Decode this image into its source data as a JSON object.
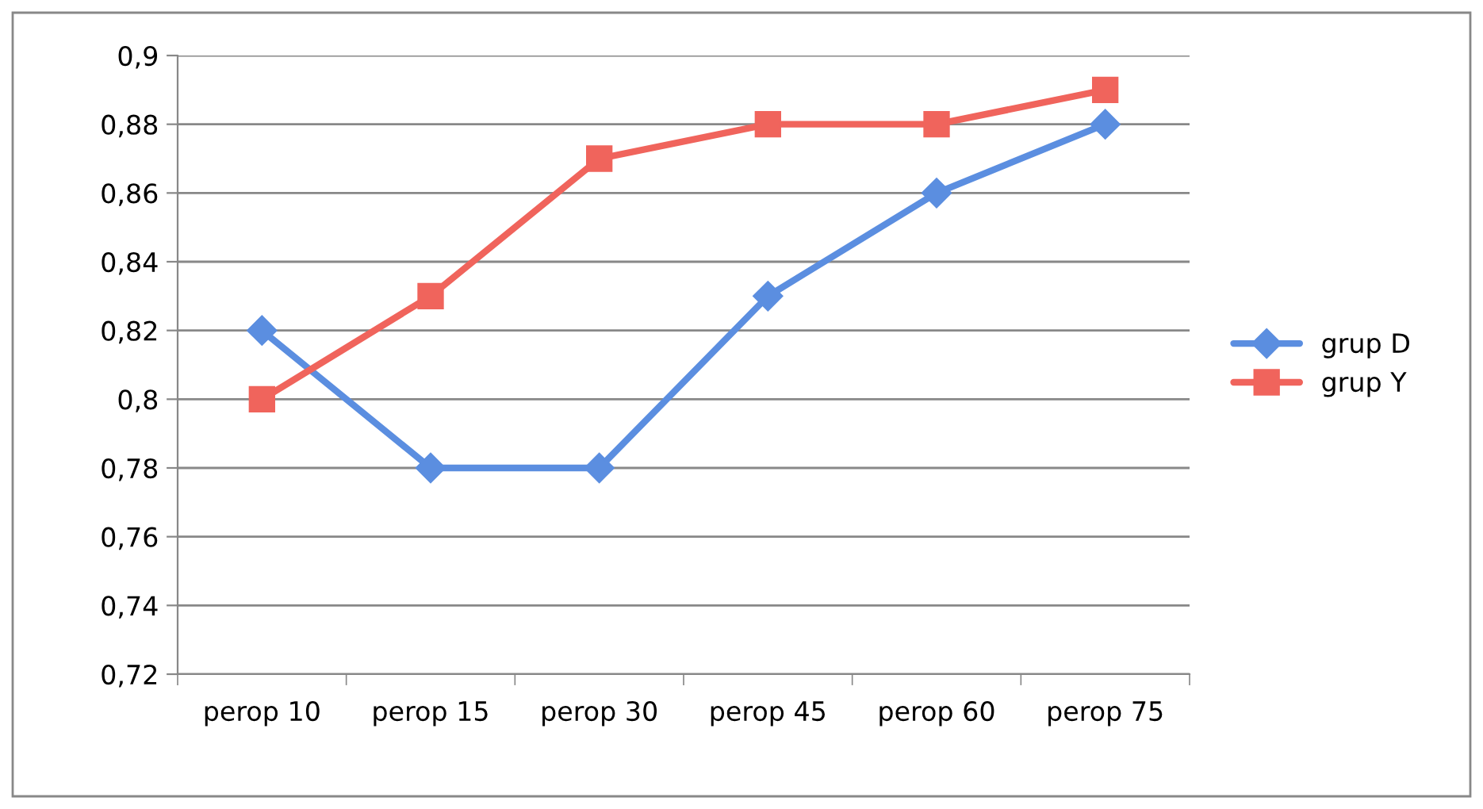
{
  "chart_data": {
    "type": "line",
    "categories": [
      "perop 10",
      "perop 15",
      "perop 30",
      "perop 45",
      "perop 60",
      "perop 75"
    ],
    "series": [
      {
        "name": "grup D",
        "color": "#5b8ee0",
        "marker": "diamond",
        "values": [
          0.82,
          0.78,
          0.78,
          0.83,
          0.86,
          0.88
        ]
      },
      {
        "name": "grup Y",
        "color": "#f0645c",
        "marker": "square",
        "values": [
          0.8,
          0.83,
          0.87,
          0.88,
          0.88,
          0.89
        ]
      }
    ],
    "ylim": [
      0.72,
      0.9
    ],
    "yticks": [
      {
        "value": 0.72,
        "label": "0,72"
      },
      {
        "value": 0.74,
        "label": "0,74"
      },
      {
        "value": 0.76,
        "label": "0,76"
      },
      {
        "value": 0.78,
        "label": "0,78"
      },
      {
        "value": 0.8,
        "label": "0,8"
      },
      {
        "value": 0.82,
        "label": "0,82"
      },
      {
        "value": 0.84,
        "label": "0,84"
      },
      {
        "value": 0.86,
        "label": "0,86"
      },
      {
        "value": 0.88,
        "label": "0,88"
      },
      {
        "value": 0.9,
        "label": "0,9"
      }
    ],
    "grid": "y",
    "legend": "right",
    "line_style": "solid"
  }
}
